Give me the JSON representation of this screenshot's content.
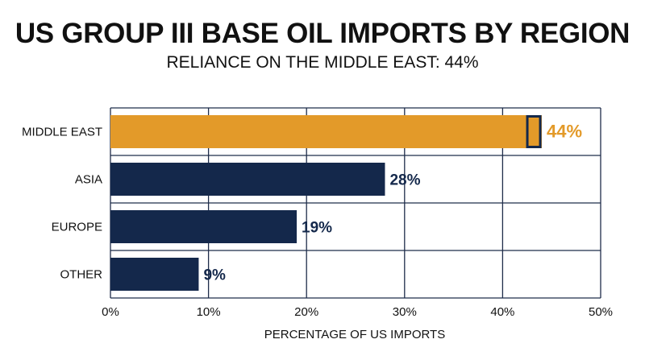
{
  "chart_data": {
    "type": "bar",
    "orientation": "horizontal",
    "title": "US GROUP III BASE OIL IMPORTS BY REGION",
    "subtitle": "RELIANCE ON THE MIDDLE EAST: 44%",
    "categories": [
      "MIDDLE EAST",
      "ASIA",
      "EUROPE",
      "OTHER"
    ],
    "values": [
      44,
      28,
      19,
      9
    ],
    "value_labels": [
      "44%",
      "28%",
      "19%",
      "9%"
    ],
    "xlabel": "PERCENTAGE OF US IMPORTS",
    "ylabel": "",
    "xlim": [
      0,
      50
    ],
    "ticks": [
      0,
      10,
      20,
      30,
      40,
      50
    ],
    "tick_labels": [
      "0%",
      "10%",
      "20%",
      "30%",
      "40%",
      "50%"
    ],
    "grid": true,
    "highlight_category": "MIDDLE EAST",
    "colors": {
      "highlight": "#E39A29",
      "bar": "#14284B",
      "grid": "#1F2D4A",
      "highlight_label": "#E39A29",
      "label": "#14284B"
    }
  }
}
